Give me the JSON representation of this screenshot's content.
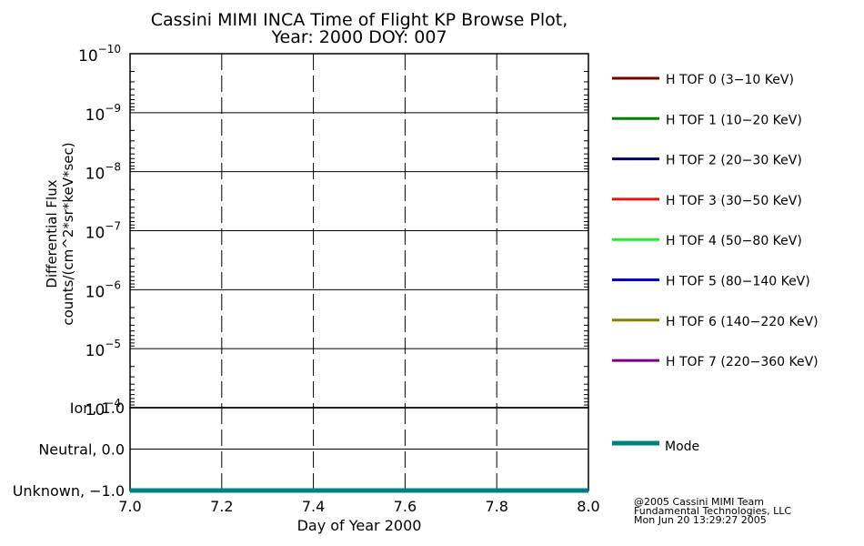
{
  "chart_data": [
    {
      "type": "line",
      "title": "Cassini MIMI INCA Time of Flight KP Browse Plot,",
      "subtitle": "Year: 2000 DOY: 007",
      "ylabel_line1": "Differential Flux",
      "ylabel_line2": "counts/(cm^2*sr*keV*sec)",
      "y_scale": "log",
      "ylim": [
        1e-10,
        0.0001
      ],
      "y_tick_labels": [
        {
          "base": "10",
          "exp": "−10"
        },
        {
          "base": "10",
          "exp": "−9"
        },
        {
          "base": "10",
          "exp": "−8"
        },
        {
          "base": "10",
          "exp": "−7"
        },
        {
          "base": "10",
          "exp": "−6"
        },
        {
          "base": "10",
          "exp": "−5"
        },
        {
          "base": "10",
          "exp": "−4"
        }
      ],
      "grid": true,
      "legend_position": "right",
      "series": [
        {
          "name": "H TOF 0 (3−10 KeV)",
          "color": "#7a0000",
          "values": []
        },
        {
          "name": "H TOF 1 (10−20 KeV)",
          "color": "#008000",
          "values": []
        },
        {
          "name": "H TOF 2 (20−30 KeV)",
          "color": "#00006e",
          "values": []
        },
        {
          "name": "H TOF 3 (30−50 KeV)",
          "color": "#ee1111",
          "values": []
        },
        {
          "name": "H TOF 4 (50−80 KeV)",
          "color": "#22ee22",
          "values": []
        },
        {
          "name": "H TOF 5 (80−140 KeV)",
          "color": "#0000cc",
          "values": []
        },
        {
          "name": "H TOF 6 (140−220 KeV)",
          "color": "#8b7d00",
          "values": []
        },
        {
          "name": "H TOF 7 (220−360 KeV)",
          "color": "#800080",
          "values": []
        }
      ]
    },
    {
      "type": "line",
      "xlabel": "Day of Year 2000",
      "xlim": [
        7.0,
        8.0
      ],
      "x_ticks": [
        7.0,
        7.2,
        7.4,
        7.6,
        7.8,
        8.0
      ],
      "x_tick_labels": [
        "7.0",
        "7.2",
        "7.4",
        "7.6",
        "7.8",
        "8.0"
      ],
      "ylim": [
        -1.0,
        1.0
      ],
      "y_ticks": [
        1.0,
        0.0,
        -1.0
      ],
      "y_tick_labels": [
        "Ion, 1.0",
        "Neutral, 0.0",
        "Unknown, −1.0"
      ],
      "grid": true,
      "legend_position": "right",
      "series": [
        {
          "name": "Mode",
          "color": "#008080",
          "x": [
            7.0,
            8.0
          ],
          "values": [
            -1.0,
            -1.0
          ]
        }
      ]
    }
  ],
  "footer": {
    "line1": "@2005 Cassini MIMI Team",
    "line2": "Fundamental Technologies, LLC",
    "line3": "Mon Jun 20 13:29:27 2005"
  }
}
